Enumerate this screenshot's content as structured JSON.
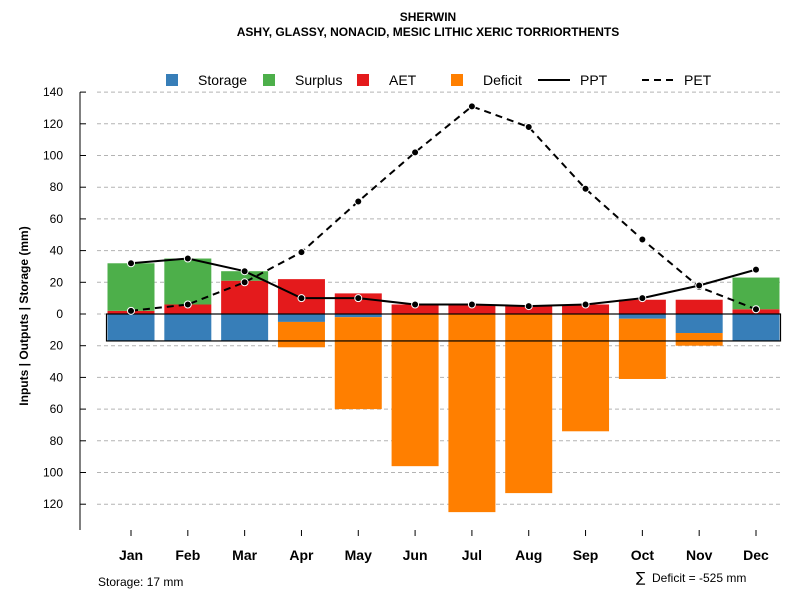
{
  "chart_data": {
    "type": "bar",
    "title": "SHERWIN",
    "subtitle": "ASHY, GLASSY, NONACID, MESIC LITHIC XERIC TORRIORTHENTS",
    "ylabel": "Inputs | Outputs | Storage    (mm)",
    "ylim": [
      -128,
      140
    ],
    "yticks": [
      140,
      120,
      100,
      80,
      60,
      40,
      20,
      0,
      -20,
      -40,
      -60,
      -80,
      -100,
      -120
    ],
    "ytick_labels": [
      "140",
      "120",
      "100",
      "80",
      "60",
      "40",
      "20",
      "0",
      "20",
      "40",
      "60",
      "80",
      "100",
      "120"
    ],
    "grid": true,
    "categories": [
      "Jan",
      "Feb",
      "Mar",
      "Apr",
      "May",
      "Jun",
      "Jul",
      "Aug",
      "Sep",
      "Oct",
      "Nov",
      "Dec"
    ],
    "storage_capacity": 17,
    "series": [
      {
        "name": "Storage",
        "color": "#377eb8",
        "kind": "bar",
        "values": [
          17,
          17,
          17,
          5,
          2,
          0,
          0,
          0,
          0,
          3,
          12,
          17
        ]
      },
      {
        "name": "Surplus",
        "color": "#4daf4a",
        "kind": "bar",
        "values": [
          30,
          29,
          6,
          0,
          0,
          0,
          0,
          0,
          0,
          0,
          0,
          20
        ]
      },
      {
        "name": "AET",
        "color": "#e41a1c",
        "kind": "bar",
        "values": [
          2,
          6,
          21,
          22,
          13,
          6,
          6,
          5,
          6,
          9,
          9,
          3
        ]
      },
      {
        "name": "Deficit",
        "color": "#ff7f00",
        "kind": "bar",
        "values": [
          0,
          0,
          0,
          16,
          58,
          96,
          125,
          113,
          74,
          38,
          8,
          0
        ]
      },
      {
        "name": "PPT",
        "color": "#000000",
        "kind": "line",
        "dash": "solid",
        "values": [
          32,
          35,
          27,
          10,
          10,
          6,
          6,
          5,
          6,
          10,
          18,
          28
        ]
      },
      {
        "name": "PET",
        "color": "#000000",
        "kind": "line",
        "dash": "dashed",
        "values": [
          2,
          6,
          20,
          39,
          71,
          102,
          131,
          118,
          79,
          47,
          17,
          3
        ]
      }
    ],
    "legend": {
      "placement": "top",
      "items": [
        {
          "label": "Storage",
          "symbol": "box",
          "color": "#377eb8"
        },
        {
          "label": "Surplus",
          "symbol": "box",
          "color": "#4daf4a"
        },
        {
          "label": "AET",
          "symbol": "box",
          "color": "#e41a1c"
        },
        {
          "label": "Deficit",
          "symbol": "box",
          "color": "#ff7f00"
        },
        {
          "label": "PPT",
          "symbol": "solid-line",
          "color": "#000000"
        },
        {
          "label": "PET",
          "symbol": "dashed-line",
          "color": "#000000"
        }
      ]
    },
    "footer_left": "Storage: 17 mm",
    "footer_right_symbol": "∑",
    "footer_right": "Deficit = -525 mm"
  }
}
